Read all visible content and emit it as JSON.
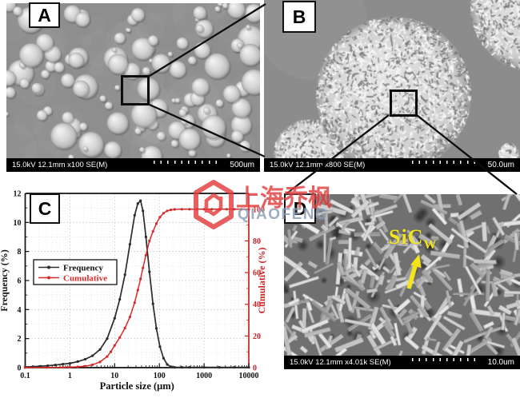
{
  "figure_labels": {
    "a": "A",
    "b": "B",
    "c": "C",
    "d": "D"
  },
  "panel_a": {
    "info": "15.0kV 12.1mm x100 SE(M)",
    "scale": "500um"
  },
  "panel_b": {
    "info": "15.0kV 12.1mm x800 SE(M)",
    "scale": "50.0um"
  },
  "panel_d": {
    "info": "15.0kV 12.1mm x4.01k SE(M)",
    "scale": "10.0um",
    "annotation_main": "SiC",
    "annotation_sub": "W",
    "annotation_color": "#f4e41a"
  },
  "watermark": {
    "text_cn": "上海乔枫",
    "text_en": "QIAOFENG",
    "accent_color": "#e23c3c",
    "en_color": "#8a9cb4"
  },
  "chart_data": {
    "type": "line",
    "title": "",
    "xlabel": "Particle size (μm)",
    "ylabel_left": "Frequency (%)",
    "ylabel_right": "Cumulative (%)",
    "x_scale": "log",
    "xlim": [
      0.1,
      10000
    ],
    "ylim_left": [
      0,
      12
    ],
    "ylim_right": [
      0,
      110
    ],
    "x_ticks": [
      0.1,
      1,
      10,
      100,
      1000,
      10000
    ],
    "x_tick_labels": [
      "0.1",
      "1",
      "10",
      "100",
      "1000",
      "10000"
    ],
    "y_ticks_left": [
      0,
      2,
      4,
      6,
      8,
      10,
      12
    ],
    "y_ticks_right": [
      0,
      20,
      40,
      60,
      80,
      100
    ],
    "grid": "dashed, at major and minor ticks",
    "legend_position": "middle-left",
    "legend": [
      "Frequency",
      "Cumulative"
    ],
    "series": [
      {
        "name": "Frequency",
        "axis": "left",
        "color": "#2b2b2b",
        "marker": "dot",
        "x": [
          0.1,
          0.15,
          0.22,
          0.32,
          0.47,
          0.7,
          1.0,
          1.5,
          2.2,
          3.2,
          4.7,
          6.8,
          10,
          13,
          17,
          22,
          28,
          33,
          38,
          43,
          50,
          60,
          72,
          86,
          103,
          124,
          150,
          180,
          220,
          320,
          470,
          1000,
          2200,
          4700,
          10000
        ],
        "y": [
          0.05,
          0.07,
          0.1,
          0.13,
          0.18,
          0.24,
          0.3,
          0.42,
          0.58,
          0.82,
          1.25,
          2.0,
          3.4,
          4.7,
          6.4,
          8.5,
          10.5,
          11.3,
          11.5,
          10.8,
          9.0,
          6.6,
          4.4,
          2.7,
          1.45,
          0.65,
          0.22,
          0.06,
          0.02,
          0.02,
          0.02,
          0.02,
          0.02,
          0.02,
          0.02
        ]
      },
      {
        "name": "Cumulative",
        "axis": "right",
        "color": "#d42b2b",
        "marker": "dot",
        "x": [
          0.1,
          0.3,
          0.7,
          1.0,
          1.5,
          2.2,
          3.2,
          4.7,
          6.8,
          8.2,
          10,
          13,
          17,
          22,
          28,
          33,
          38,
          43,
          50,
          60,
          72,
          86,
          103,
          124,
          150,
          180,
          220,
          320,
          470,
          700,
          1000,
          1500,
          2200,
          3200,
          4700,
          6800,
          10000
        ],
        "y": [
          0.05,
          0.1,
          0.2,
          0.3,
          0.5,
          0.9,
          1.8,
          3.6,
          7,
          10,
          14,
          19,
          25,
          32,
          41,
          49,
          56,
          63,
          71,
          80,
          86,
          91,
          95,
          97.5,
          99,
          99.6,
          99.9,
          100,
          100,
          100,
          100,
          100,
          100,
          100,
          100,
          100,
          100
        ]
      }
    ]
  }
}
